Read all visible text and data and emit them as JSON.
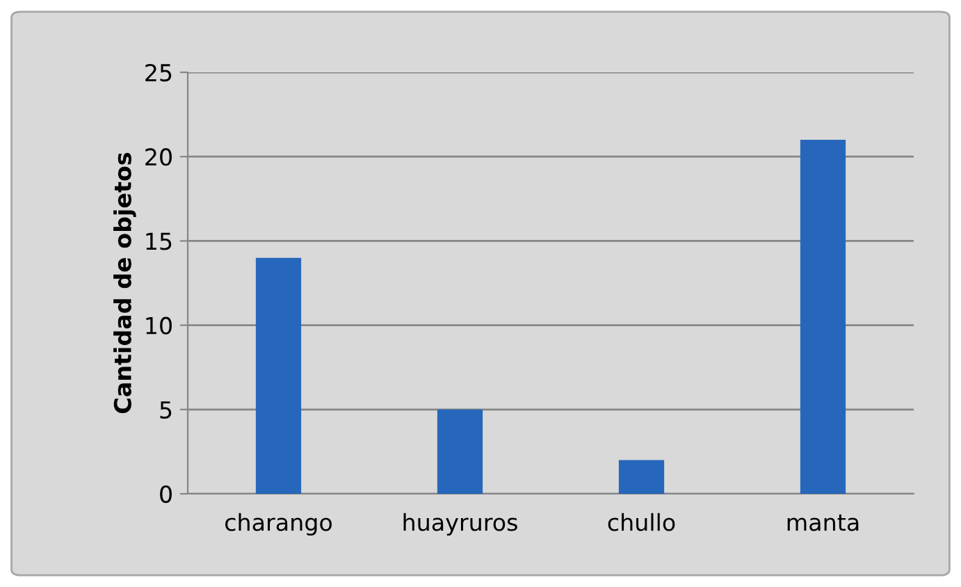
{
  "chart_data": {
    "type": "bar",
    "ylabel": "Cantidad de objetos",
    "categories": [
      "charango",
      "huayruros",
      "chullo",
      "manta"
    ],
    "values": [
      14,
      5,
      2,
      21
    ],
    "color": "#2767bb",
    "ylim": [
      0,
      25
    ],
    "yticks": [
      0,
      5,
      10,
      15,
      20,
      25
    ],
    "grid": "y"
  }
}
